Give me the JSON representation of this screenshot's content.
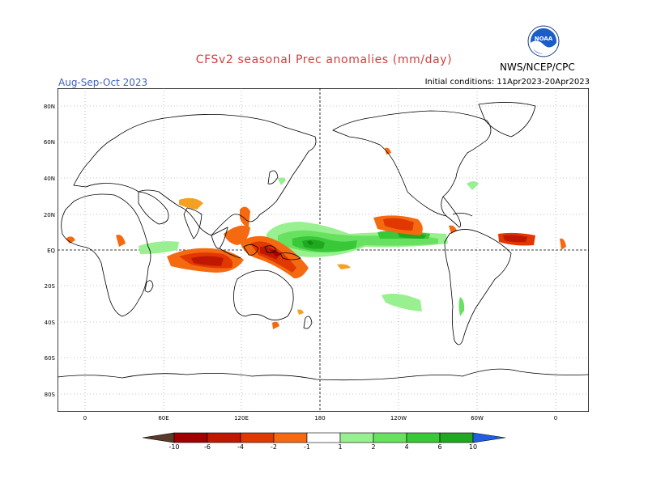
{
  "title": "CFSv2 seasonal Prec anomalies (mm/day)",
  "agency": "NWS/NCEP/CPC",
  "logo_text": "NOAA",
  "season": "Aug-Sep-Oct 2023",
  "initial_conditions": "Initial conditions: 11Apr2023-20Apr2023",
  "lat_labels": [
    "80N",
    "60N",
    "40N",
    "20N",
    "EQ",
    "20S",
    "40S",
    "60S",
    "80S"
  ],
  "lon_labels": [
    "0",
    "60E",
    "120E",
    "180",
    "120W",
    "60W",
    "0"
  ],
  "colorbar": {
    "labels": [
      "-10",
      "-6",
      "-4",
      "-2",
      "-1",
      "1",
      "2",
      "4",
      "6",
      "10"
    ],
    "dry_colors": [
      "#5a3a2a",
      "#a00000",
      "#c01800",
      "#e03800",
      "#f56a10",
      "#f5a020"
    ],
    "wet_colors": [
      "#98f090",
      "#68e060",
      "#38c838",
      "#20a820",
      "#108c10",
      "#2060e0"
    ]
  }
}
